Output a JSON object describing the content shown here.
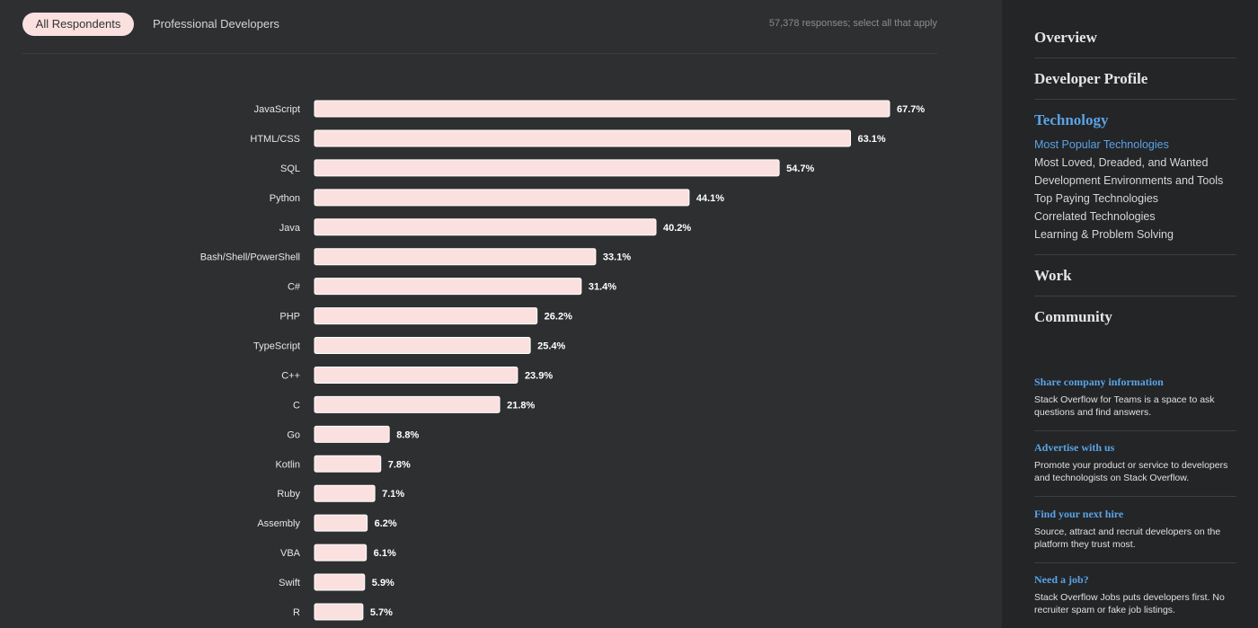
{
  "tabs": {
    "all": "All Respondents",
    "pro": "Professional Developers"
  },
  "responses": "57,378 responses; select all that apply",
  "chart_data": {
    "type": "bar",
    "orientation": "horizontal",
    "categories": [
      "JavaScript",
      "HTML/CSS",
      "SQL",
      "Python",
      "Java",
      "Bash/Shell/PowerShell",
      "C#",
      "PHP",
      "TypeScript",
      "C++",
      "C",
      "Go",
      "Kotlin",
      "Ruby",
      "Assembly",
      "VBA",
      "Swift",
      "R"
    ],
    "values": [
      67.7,
      63.1,
      54.7,
      44.1,
      40.2,
      33.1,
      31.4,
      26.2,
      25.4,
      23.9,
      21.8,
      8.8,
      7.8,
      7.1,
      6.2,
      6.1,
      5.9,
      5.7
    ],
    "value_labels": [
      "67.7%",
      "63.1%",
      "54.7%",
      "44.1%",
      "40.2%",
      "33.1%",
      "31.4%",
      "26.2%",
      "25.4%",
      "23.9%",
      "21.8%",
      "8.8%",
      "7.8%",
      "7.1%",
      "6.2%",
      "6.1%",
      "5.9%",
      "5.7%"
    ],
    "unit": "%",
    "bar_color": "#fbe0e0"
  },
  "sidebar": {
    "sections": [
      "Overview",
      "Developer Profile",
      "Technology",
      "Work",
      "Community"
    ],
    "technology_items": [
      "Most Popular Technologies",
      "Most Loved, Dreaded, and Wanted",
      "Development Environments and Tools",
      "Top Paying Technologies",
      "Correlated Technologies",
      "Learning & Problem Solving"
    ],
    "promos": [
      {
        "title": "Share company information",
        "text": "Stack Overflow for Teams is a space to ask questions and find answers."
      },
      {
        "title": "Advertise with us",
        "text": "Promote your product or service to developers and technologists on Stack Overflow."
      },
      {
        "title": "Find your next hire",
        "text": "Source, attract and recruit developers on the platform they trust most."
      },
      {
        "title": "Need a job?",
        "text": "Stack Overflow Jobs puts developers first. No recruiter spam or fake job listings."
      }
    ]
  },
  "colors": {
    "background": "#2d2f31",
    "sidebar": "#232527",
    "accent": "#5ba3e6",
    "bar": "#fbe0e0"
  }
}
